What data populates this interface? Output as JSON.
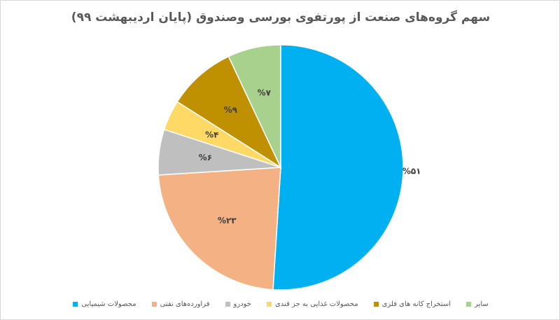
{
  "chart_data": {
    "type": "pie",
    "title": "سهم گروه‌های صنعت از پورتفوی بورسی وصندوق (پایان اردیبهشت ۹۹)",
    "categories": [
      "محصولات شیمیایی",
      "فراورده‌های نفتی",
      "خودرو",
      "محصولات غذایی به جز قندی",
      "استخراج کانه های فلزی",
      "سایر"
    ],
    "values": [
      51,
      23,
      6,
      4,
      9,
      7
    ],
    "value_labels": [
      "%۵۱",
      "%۲۳",
      "%۶",
      "%۴",
      "%۹",
      "%۷"
    ],
    "colors": [
      "#00b0f0",
      "#f4b183",
      "#bfbfbf",
      "#ffd966",
      "#bf9000",
      "#a9d18e"
    ],
    "legend": "bottom"
  }
}
